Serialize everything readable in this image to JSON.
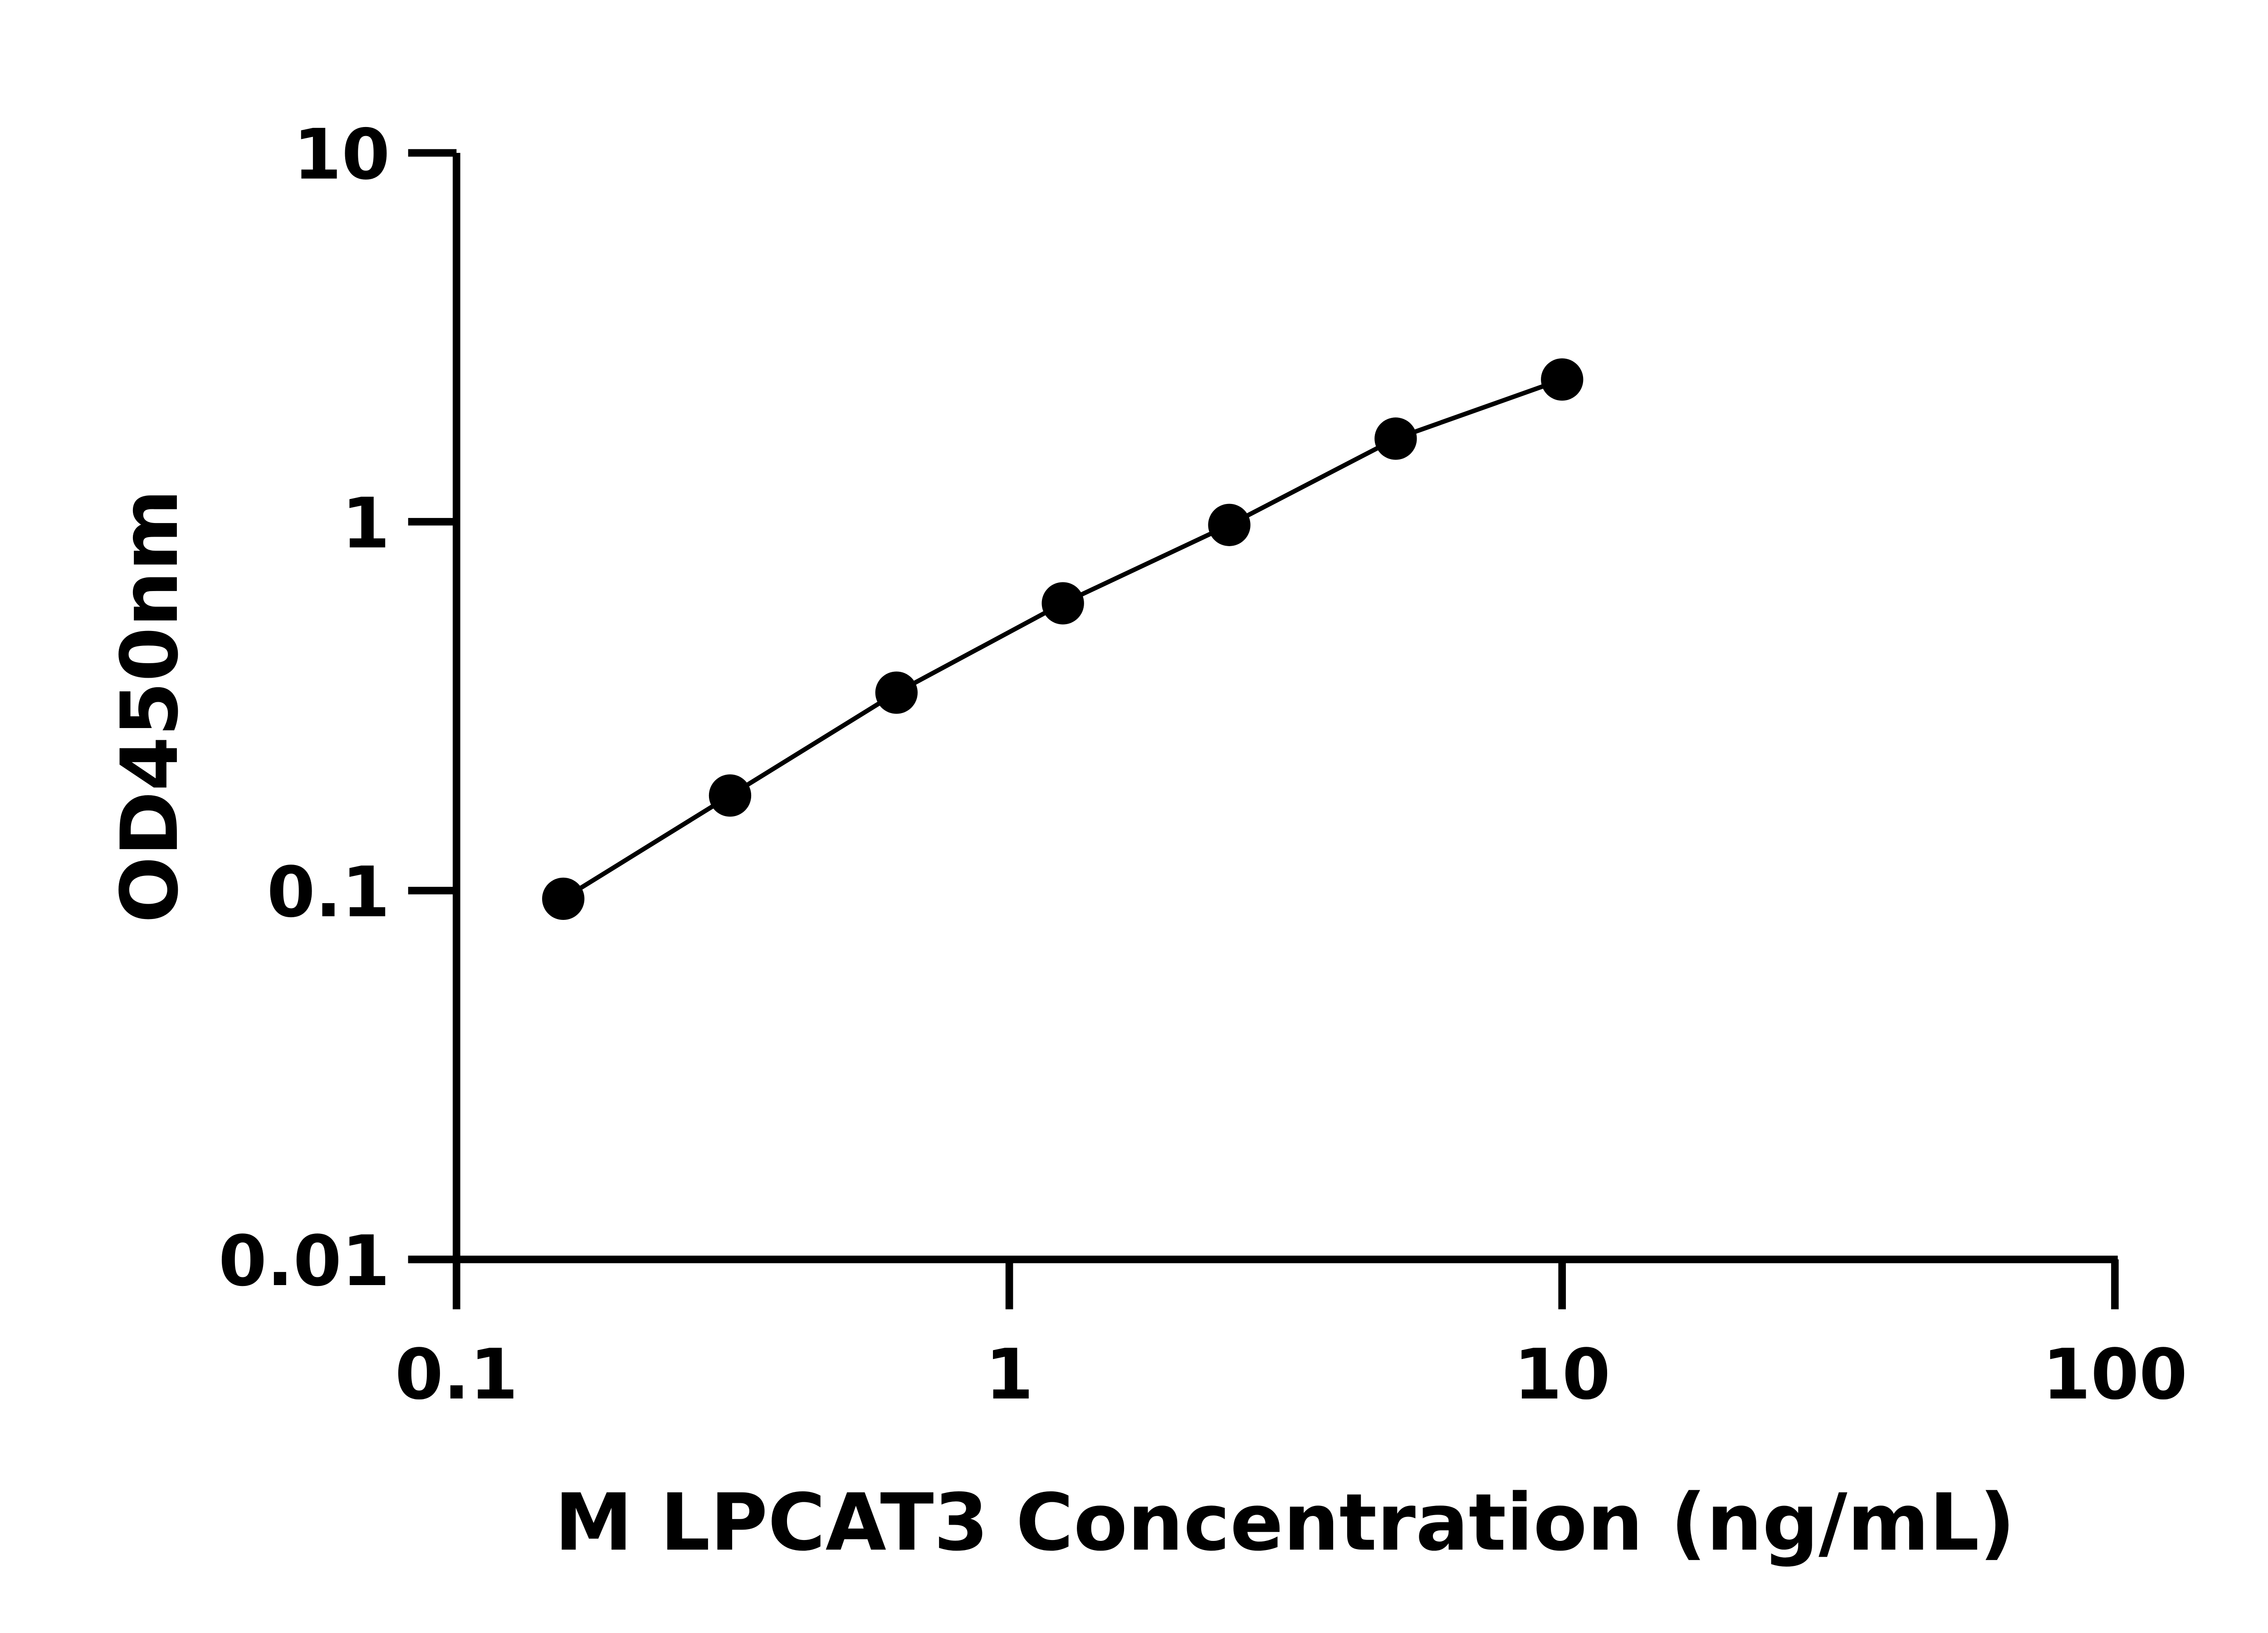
{
  "chart_data": {
    "type": "line",
    "title": "",
    "xlabel": "M LPCAT3 Concentration (ng/mL)",
    "ylabel": "OD450nm",
    "x_scale": "log",
    "y_scale": "log",
    "xlim": [
      0.1,
      100
    ],
    "ylim": [
      0.01,
      10
    ],
    "x_ticks": [
      "0.1",
      "1",
      "10",
      "100"
    ],
    "y_ticks": [
      "0.01",
      "0.1",
      "1",
      "10"
    ],
    "x_tick_values": [
      0.1,
      1,
      10,
      100
    ],
    "y_tick_values": [
      0.01,
      0.1,
      1,
      10
    ],
    "grid": false,
    "series": [
      {
        "x": [
          0.156,
          0.3125,
          0.625,
          1.25,
          2.5,
          5,
          10
        ],
        "y": [
          0.095,
          0.181,
          0.344,
          0.601,
          0.98,
          1.68,
          2.43
        ],
        "marker": "circle",
        "color": "#000000"
      }
    ]
  }
}
